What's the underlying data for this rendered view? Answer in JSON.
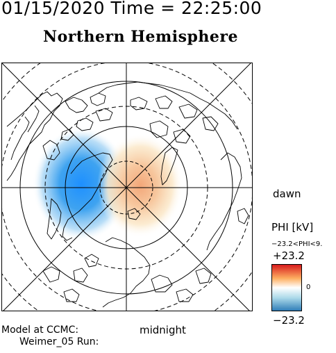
{
  "header": {
    "datetime": "01/15/2020 Time = 22:25:00",
    "hemisphere": "Northern Hemisphere"
  },
  "orientation": {
    "right_label": "dawn",
    "bottom_label": "midnight"
  },
  "colorbar": {
    "title": "PHI [kV]",
    "range_text": "−23.2<PHI<9.",
    "max_label": "+23.2",
    "zero_label": "0",
    "min_label": "−23.2",
    "colors": [
      "#d7191c",
      "#fdae61",
      "#ffffff",
      "#abd9e9",
      "#2c7bb6"
    ]
  },
  "footer": {
    "model": "Model at CCMC:",
    "run": "Weimer_05 Run:"
  },
  "potential_cells": [
    {
      "sign": "negative",
      "peak_kV": -23.2
    },
    {
      "sign": "positive",
      "peak_kV": 9
    }
  ]
}
